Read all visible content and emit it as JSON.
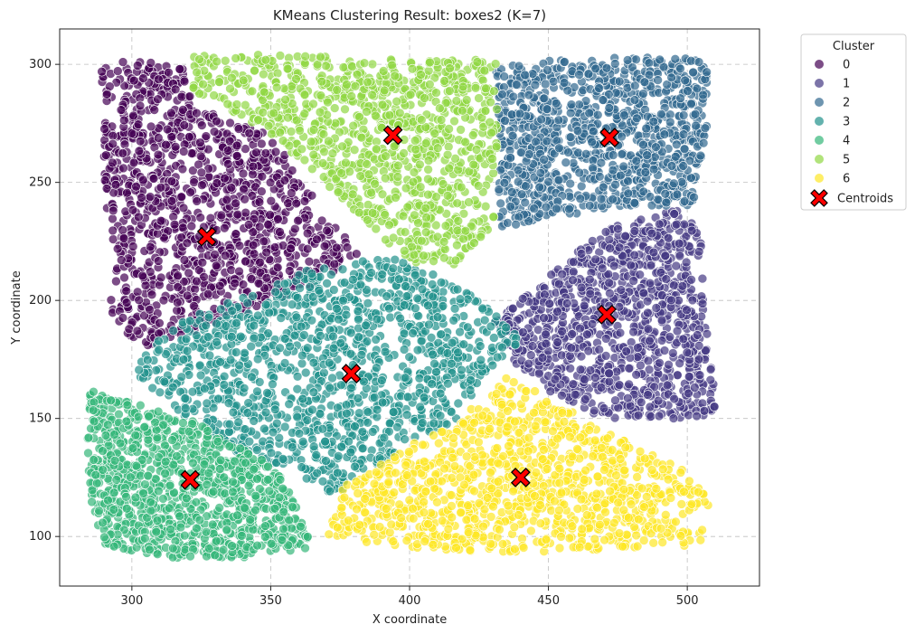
{
  "chart_data": {
    "type": "scatter",
    "title": "KMeans Clustering Result: boxes2 (K=7)",
    "xlabel": "X coordinate",
    "ylabel": "Y coordinate",
    "xlim": [
      274,
      526
    ],
    "ylim": [
      79,
      315
    ],
    "xticks": [
      300,
      350,
      400,
      450,
      500
    ],
    "yticks": [
      100,
      150,
      200,
      250,
      300
    ],
    "grid": true,
    "legend": {
      "title": "Cluster",
      "placement": "outside-top-right",
      "centroid_label": "Centroids"
    },
    "series": [
      {
        "name": "0",
        "color": "#440154",
        "region": [
          [
            289,
            300
          ],
          [
            300,
            302
          ],
          [
            318,
            300
          ],
          [
            322,
            282
          ],
          [
            350,
            270
          ],
          [
            365,
            245
          ],
          [
            382,
            220
          ],
          [
            368,
            208
          ],
          [
            345,
            196
          ],
          [
            320,
            186
          ],
          [
            305,
            180
          ],
          [
            293,
            190
          ],
          [
            290,
            240
          ]
        ],
        "count": 1150
      },
      {
        "name": "1",
        "color": "#443983",
        "region": [
          [
            430,
            190
          ],
          [
            440,
            200
          ],
          [
            455,
            215
          ],
          [
            470,
            230
          ],
          [
            500,
            240
          ],
          [
            505,
            224
          ],
          [
            506,
            195
          ],
          [
            509,
            172
          ],
          [
            513,
            152
          ],
          [
            500,
            150
          ],
          [
            470,
            150
          ],
          [
            458,
            157
          ],
          [
            440,
            168
          ]
        ],
        "count": 1000
      },
      {
        "name": "2",
        "color": "#31688e",
        "region": [
          [
            431,
            300
          ],
          [
            465,
            303
          ],
          [
            500,
            303
          ],
          [
            507,
            300
          ],
          [
            507,
            270
          ],
          [
            502,
            240
          ],
          [
            480,
            240
          ],
          [
            455,
            236
          ],
          [
            432,
            230
          ],
          [
            432,
            262
          ]
        ],
        "count": 1000
      },
      {
        "name": "3",
        "color": "#21918c",
        "region": [
          [
            370,
            216
          ],
          [
            395,
            218
          ],
          [
            418,
            206
          ],
          [
            432,
            193
          ],
          [
            440,
            183
          ],
          [
            428,
            170
          ],
          [
            418,
            150
          ],
          [
            392,
            133
          ],
          [
            373,
            117
          ],
          [
            357,
            128
          ],
          [
            335,
            135
          ],
          [
            320,
            150
          ],
          [
            300,
            170
          ],
          [
            315,
            190
          ],
          [
            345,
            204
          ]
        ],
        "count": 1250
      },
      {
        "name": "4",
        "color": "#35b779",
        "region": [
          [
            285,
            165
          ],
          [
            290,
            160
          ],
          [
            320,
            150
          ],
          [
            345,
            135
          ],
          [
            355,
            125
          ],
          [
            365,
            95
          ],
          [
            340,
            91
          ],
          [
            315,
            91
          ],
          [
            290,
            96
          ],
          [
            285,
            110
          ],
          [
            284,
            140
          ]
        ],
        "count": 1000
      },
      {
        "name": "5",
        "color": "#90d743",
        "region": [
          [
            322,
            304
          ],
          [
            360,
            304
          ],
          [
            395,
            302
          ],
          [
            432,
            302
          ],
          [
            432,
            262
          ],
          [
            430,
            230
          ],
          [
            415,
            214
          ],
          [
            400,
            216
          ],
          [
            380,
            238
          ],
          [
            362,
            258
          ],
          [
            340,
            278
          ],
          [
            322,
            288
          ]
        ],
        "count": 1000
      },
      {
        "name": "6",
        "color": "#fde725",
        "region": [
          [
            370,
            100
          ],
          [
            376,
            122
          ],
          [
            402,
            140
          ],
          [
            420,
            152
          ],
          [
            435,
            168
          ],
          [
            445,
            162
          ],
          [
            470,
            145
          ],
          [
            500,
            128
          ],
          [
            508,
            115
          ],
          [
            505,
            96
          ],
          [
            480,
            95
          ],
          [
            440,
            93
          ],
          [
            400,
            95
          ],
          [
            378,
            98
          ]
        ],
        "count": 1100
      }
    ],
    "centroids": [
      {
        "x": 327,
        "y": 227
      },
      {
        "x": 471,
        "y": 194
      },
      {
        "x": 472,
        "y": 269
      },
      {
        "x": 379,
        "y": 169
      },
      {
        "x": 321,
        "y": 124
      },
      {
        "x": 394,
        "y": 270
      },
      {
        "x": 440,
        "y": 125
      }
    ],
    "centroid_color": "#ff0000"
  }
}
